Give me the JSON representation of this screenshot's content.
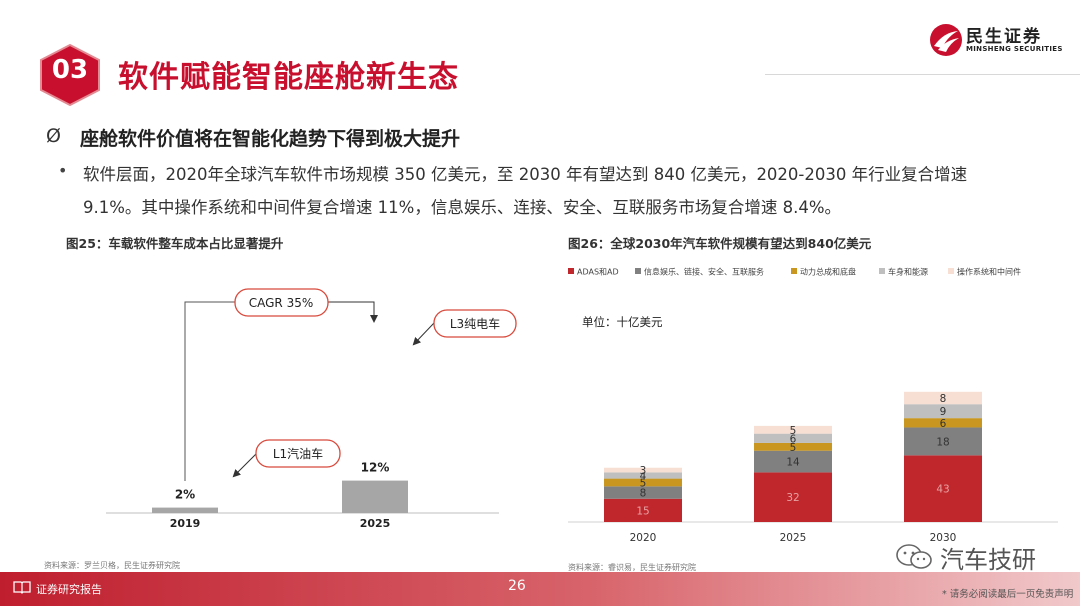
{
  "header": {
    "section_number": "03",
    "section_title": "软件赋能智能座舱新生态",
    "logo_cn": "民生证券",
    "logo_en": "MINSHENG SECURITIES",
    "brand_color": "#c8102e"
  },
  "body": {
    "main_bullet_mark": "Ø",
    "main_bullet": "座舱软件价值将在智能化趋势下得到极大提升",
    "sub_bullet_mark": "•",
    "paragraph": "软件层面，2020年全球汽车软件市场规模 350 亿美元，至 2030 年有望达到 840 亿美元，2020-2030 年行业复合增速 9.1%。其中操作系统和中间件复合增速 11%，信息娱乐、连接、安全、互联服务市场复合增速 8.4%。"
  },
  "figure25": {
    "title": "图25：车载软件整车成本占比显著提升",
    "source": "资料来源：罗兰贝格，民生证券研究院",
    "chart_data": {
      "type": "bar",
      "categories": [
        "2019",
        "2025"
      ],
      "values": [
        2,
        12
      ],
      "data_labels": [
        "2%",
        "12%"
      ],
      "annotations": {
        "cagr": "CAGR 35%",
        "bar2019": "L1汽油车",
        "bar2025": "L3纯电车"
      },
      "bar_color": "#a6a6a6"
    }
  },
  "figure26": {
    "title": "图26：全球2030年汽车软件规模有望达到840亿美元",
    "source": "资料来源：睿识易，民生证券研究院",
    "unit_label": "单位：十亿美元",
    "chart_data": {
      "type": "bar",
      "stacked": true,
      "categories": [
        "2020",
        "2025",
        "2030"
      ],
      "series": [
        {
          "name": "ADAS和AD",
          "color": "#c0272d",
          "values": [
            15,
            32,
            43
          ]
        },
        {
          "name": "信息娱乐、链接、安全、互联服务",
          "color": "#808080",
          "values": [
            8,
            14,
            18
          ]
        },
        {
          "name": "动力总成和底盘",
          "color": "#c9961f",
          "values": [
            5,
            5,
            6
          ]
        },
        {
          "name": "车身和能源",
          "color": "#bfbfbf",
          "values": [
            4,
            6,
            9
          ]
        },
        {
          "name": "操作系统和中间件",
          "color": "#f8dfd3",
          "values": [
            3,
            5,
            8
          ]
        }
      ]
    }
  },
  "footer": {
    "label": "证券研究报告",
    "page_number": "26",
    "disclaimer": "* 请务必阅读最后一页免责声明",
    "watermark": "汽车技研"
  }
}
